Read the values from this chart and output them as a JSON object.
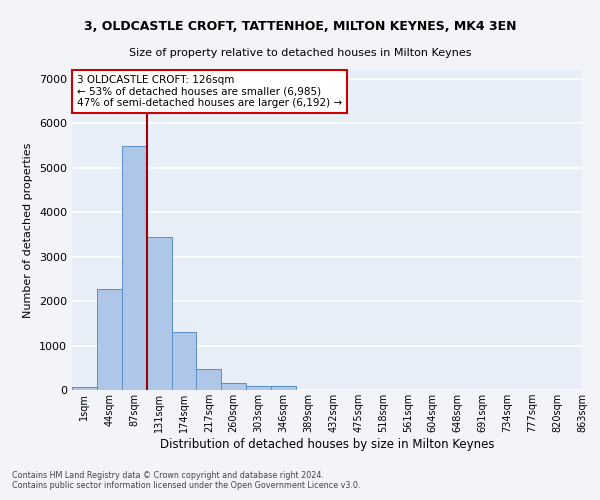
{
  "title_line1": "3, OLDCASTLE CROFT, TATTENHOE, MILTON KEYNES, MK4 3EN",
  "title_line2": "Size of property relative to detached houses in Milton Keynes",
  "xlabel": "Distribution of detached houses by size in Milton Keynes",
  "ylabel": "Number of detached properties",
  "bar_values": [
    75,
    2270,
    5480,
    3440,
    1300,
    470,
    160,
    80,
    80,
    0,
    0,
    0,
    0,
    0,
    0,
    0,
    0,
    0,
    0,
    0
  ],
  "bin_labels": [
    "1sqm",
    "44sqm",
    "87sqm",
    "131sqm",
    "174sqm",
    "217sqm",
    "260sqm",
    "303sqm",
    "346sqm",
    "389sqm",
    "432sqm",
    "475sqm",
    "518sqm",
    "561sqm",
    "604sqm",
    "648sqm",
    "691sqm",
    "734sqm",
    "777sqm",
    "820sqm",
    "863sqm"
  ],
  "bar_color": "#aec6e8",
  "bar_edge_color": "#5a8fc4",
  "bg_color": "#e8eef8",
  "fig_bg_color": "#f2f4f8",
  "grid_color": "#ffffff",
  "vline_x": 2.5,
  "vline_color": "#a00000",
  "annotation_text": "3 OLDCASTLE CROFT: 126sqm\n← 53% of detached houses are smaller (6,985)\n47% of semi-detached houses are larger (6,192) →",
  "annotation_box_color": "#ffffff",
  "annotation_box_edge": "#cc0000",
  "footnote1": "Contains HM Land Registry data © Crown copyright and database right 2024.",
  "footnote2": "Contains public sector information licensed under the Open Government Licence v3.0.",
  "ylim": [
    0,
    7200
  ],
  "yticks": [
    0,
    1000,
    2000,
    3000,
    4000,
    5000,
    6000,
    7000
  ]
}
